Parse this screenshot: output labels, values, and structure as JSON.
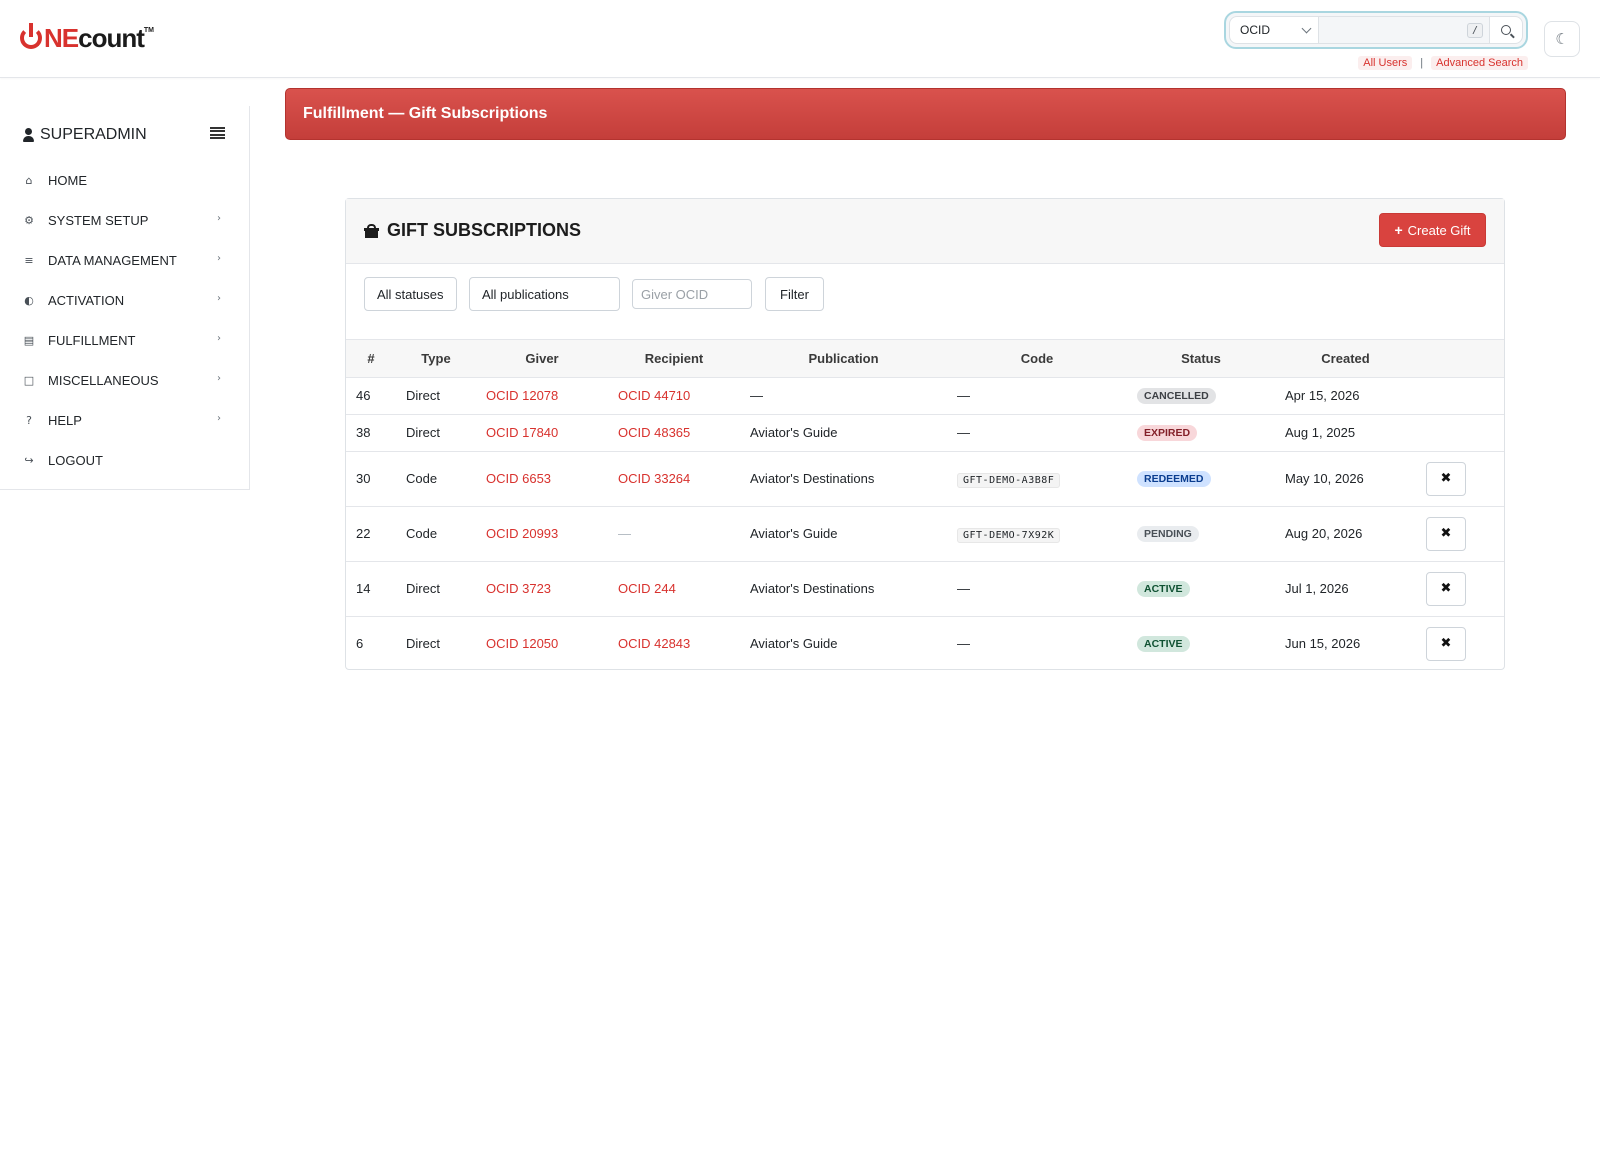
{
  "brand": {
    "logo_primary": "NE",
    "logo_secondary": "count",
    "logo_tm": "TM",
    "accent": "#d8322e"
  },
  "search": {
    "type_selected": "OCID",
    "shortcut": "/",
    "links": [
      "All Users",
      "Advanced Search"
    ],
    "separator": "|"
  },
  "theme_toggle": {
    "glyph": "☾"
  },
  "sidebar": {
    "user": "SUPERADMIN",
    "items": [
      {
        "label": "HOME",
        "icon": "home-icon",
        "glyph": "⌂",
        "has_submenu": false
      },
      {
        "label": "SYSTEM SETUP",
        "icon": "gear-icon",
        "glyph": "⚙",
        "has_submenu": true
      },
      {
        "label": "DATA MANAGEMENT",
        "icon": "database-icon",
        "glyph": "≡",
        "has_submenu": true
      },
      {
        "label": "ACTIVATION",
        "icon": "toggle-icon",
        "glyph": "◐",
        "has_submenu": true
      },
      {
        "label": "FULFILLMENT",
        "icon": "newspaper-icon",
        "glyph": "▤",
        "has_submenu": true
      },
      {
        "label": "MISCELLANEOUS",
        "icon": "file-icon",
        "glyph": "□",
        "has_submenu": true
      },
      {
        "label": "HELP",
        "icon": "question-icon",
        "glyph": "?",
        "has_submenu": true
      },
      {
        "label": "LOGOUT",
        "icon": "sign-out-icon",
        "glyph": "↪",
        "has_submenu": false
      }
    ],
    "chevron": "›"
  },
  "page": {
    "banner_title": "Fulfillment — Gift Subscriptions"
  },
  "card": {
    "title": "GIFT SUBSCRIPTIONS",
    "create_label": "Create Gift",
    "create_plus": "+",
    "filters": {
      "status_selected": "All statuses",
      "publication_selected": "All publications",
      "giver_placeholder": "Giver OCID",
      "filter_label": "Filter"
    },
    "columns": [
      "#",
      "Type",
      "Giver",
      "Recipient",
      "Publication",
      "Code",
      "Status",
      "Created"
    ],
    "rows": [
      {
        "id": "46",
        "type": "Direct",
        "giver": "OCID 12078",
        "recipient": "OCID 44710",
        "publication": "—",
        "code": "—",
        "status": "CANCELLED",
        "status_class": "b-cancelled",
        "created": "Apr 15, 2026",
        "cancellable": false
      },
      {
        "id": "38",
        "type": "Direct",
        "giver": "OCID 17840",
        "recipient": "OCID 48365",
        "publication": "Aviator's Guide",
        "code": "—",
        "status": "EXPIRED",
        "status_class": "b-expired",
        "created": "Aug 1, 2025",
        "cancellable": false
      },
      {
        "id": "30",
        "type": "Code",
        "giver": "OCID 6653",
        "recipient": "OCID 33264",
        "publication": "Aviator's Destinations",
        "code": "GFT-DEMO-A3B8F",
        "status": "REDEEMED",
        "status_class": "b-redeemed",
        "created": "May 10, 2026",
        "cancellable": true
      },
      {
        "id": "22",
        "type": "Code",
        "giver": "OCID 20993",
        "recipient": "—",
        "publication": "Aviator's Guide",
        "code": "GFT-DEMO-7X92K",
        "status": "PENDING",
        "status_class": "b-pending",
        "created": "Aug 20, 2026",
        "cancellable": true
      },
      {
        "id": "14",
        "type": "Direct",
        "giver": "OCID 3723",
        "recipient": "OCID 244",
        "publication": "Aviator's Destinations",
        "code": "—",
        "status": "ACTIVE",
        "status_class": "b-active",
        "created": "Jul 1, 2026",
        "cancellable": true
      },
      {
        "id": "6",
        "type": "Direct",
        "giver": "OCID 12050",
        "recipient": "OCID 42843",
        "publication": "Aviator's Guide",
        "code": "—",
        "status": "ACTIVE",
        "status_class": "b-active",
        "created": "Jun 15, 2026",
        "cancellable": true
      }
    ],
    "cancel_glyph": "✖"
  }
}
